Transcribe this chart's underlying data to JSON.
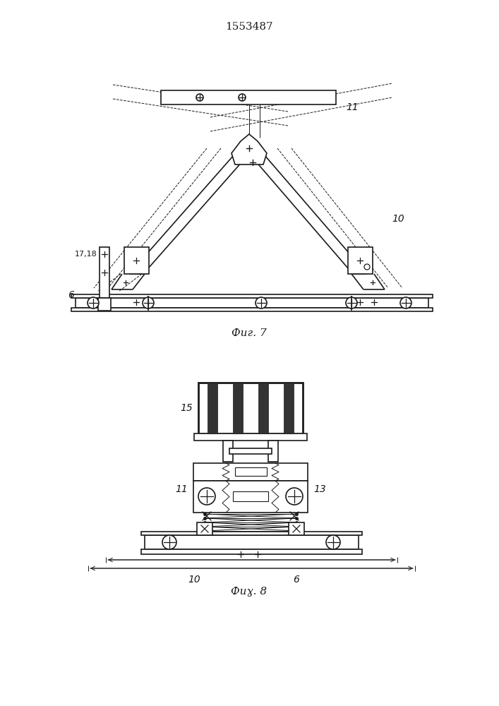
{
  "title": "1553487",
  "fig7_label": "Фиг. 7",
  "fig8_label": "Фиɣ. 8",
  "line_color": "#1a1a1a"
}
